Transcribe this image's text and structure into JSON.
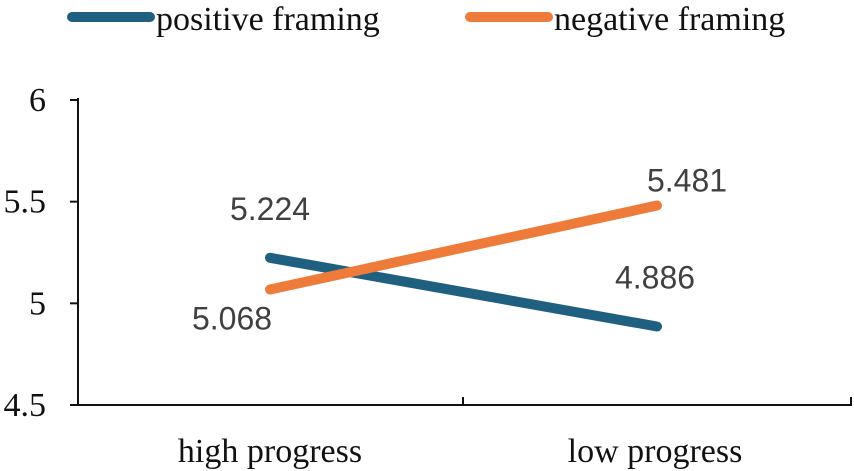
{
  "chart_data": {
    "type": "line",
    "title": "",
    "xlabel": "",
    "ylabel": "",
    "categories": [
      "high progress",
      "low progress"
    ],
    "ylim": [
      4.5,
      6
    ],
    "yticks": [
      "4.5",
      "5",
      "5.5",
      "6"
    ],
    "grid": false,
    "legend_position": "top",
    "series": [
      {
        "name": "positive framing",
        "color": "#1f5f7f",
        "values": [
          5.224,
          4.886
        ],
        "labels": [
          "5.224",
          "4.886"
        ]
      },
      {
        "name": "negative framing",
        "color": "#ee7b3a",
        "values": [
          5.068,
          5.481
        ],
        "labels": [
          "5.068",
          "5.481"
        ]
      }
    ]
  }
}
